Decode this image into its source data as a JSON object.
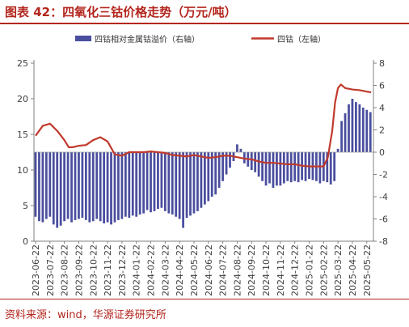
{
  "title": "图表 42：四氧化三钴价格走势（万元/吨）",
  "source": "资料来源：wind，华源证券研究所",
  "colors": {
    "accent": "#b3261e",
    "bar": "#4a4e9e",
    "line": "#c0392b"
  },
  "chart_data": {
    "type": "bar",
    "legend": [
      "四钴相对金属钴溢价（右轴）",
      "四钴（左轴）"
    ],
    "legend_placement": "top",
    "left_axis": {
      "ylim": [
        0,
        25
      ],
      "ticks": [
        "0",
        "5",
        "10",
        "15",
        "20",
        "25"
      ]
    },
    "right_axis": {
      "ylim": [
        -8,
        8
      ],
      "ticks": [
        "-8",
        "-6",
        "-4",
        "-2",
        "0",
        "2",
        "4",
        "6",
        "8"
      ]
    },
    "x_tick_labels": [
      "2023-06-22",
      "2023-07-22",
      "2023-08-22",
      "2023-09-22",
      "2023-10-22",
      "2023-11-22",
      "2023-12-22",
      "2024-01-22",
      "2024-02-22",
      "2024-03-22",
      "2024-04-22",
      "2024-05-22",
      "2024-06-22",
      "2024-07-22",
      "2024-08-22",
      "2024-09-22",
      "2024-10-22",
      "2024-11-22",
      "2024-12-22",
      "2025-01-22",
      "2025-02-22",
      "2025-03-22",
      "2025-04-22",
      "2025-05-22"
    ],
    "series": [
      {
        "name": "四钴相对金属钴溢价（右轴）",
        "type": "bar",
        "axis": "right",
        "x_month_index": [
          0.0,
          0.25,
          0.5,
          0.75,
          1.0,
          1.25,
          1.5,
          1.75,
          2.0,
          2.25,
          2.5,
          2.75,
          3.0,
          3.25,
          3.5,
          3.75,
          4.0,
          4.25,
          4.5,
          4.75,
          5.0,
          5.25,
          5.5,
          5.75,
          6.0,
          6.25,
          6.5,
          6.75,
          7.0,
          7.25,
          7.5,
          7.75,
          8.0,
          8.25,
          8.5,
          8.75,
          9.0,
          9.25,
          9.5,
          9.75,
          10.0,
          10.25,
          10.5,
          10.75,
          11.0,
          11.25,
          11.5,
          11.75,
          12.0,
          12.25,
          12.5,
          12.75,
          13.0,
          13.25,
          13.5,
          13.75,
          14.0,
          14.25,
          14.5,
          14.75,
          15.0,
          15.25,
          15.5,
          15.75,
          16.0,
          16.25,
          16.5,
          16.75,
          17.0,
          17.25,
          17.5,
          17.75,
          18.0,
          18.25,
          18.5,
          18.75,
          19.0,
          19.25,
          19.5,
          19.75,
          20.0,
          20.25,
          20.5,
          20.75,
          21.0,
          21.25,
          21.5,
          21.75,
          22.0,
          22.25,
          22.5,
          22.75,
          23.0,
          23.25
        ],
        "values": [
          -5.8,
          -6.2,
          -6.3,
          -6.0,
          -5.8,
          -6.5,
          -6.8,
          -6.6,
          -6.2,
          -6.0,
          -6.3,
          -6.1,
          -6.0,
          -5.9,
          -6.1,
          -6.3,
          -6.2,
          -6.0,
          -6.2,
          -6.4,
          -6.3,
          -6.5,
          -6.3,
          -6.1,
          -6.0,
          -5.8,
          -5.9,
          -5.7,
          -5.8,
          -5.6,
          -5.5,
          -5.2,
          -5.4,
          -5.3,
          -5.1,
          -5.0,
          -5.3,
          -5.5,
          -5.6,
          -5.8,
          -6.0,
          -6.8,
          -5.9,
          -5.7,
          -5.5,
          -5.3,
          -5.0,
          -4.7,
          -4.4,
          -4.0,
          -3.8,
          -3.2,
          -2.6,
          -2.0,
          -1.4,
          -0.8,
          0.7,
          0.3,
          -1.0,
          -1.3,
          -1.6,
          -1.8,
          -2.2,
          -2.6,
          -3.0,
          -2.8,
          -3.2,
          -3.0,
          -3.0,
          -2.8,
          -2.6,
          -2.7,
          -2.6,
          -2.7,
          -2.5,
          -2.6,
          -2.4,
          -2.5,
          -2.6,
          -2.8,
          -2.6,
          -2.7,
          -2.9,
          -2.6,
          0.3,
          2.8,
          3.5,
          4.3,
          4.8,
          4.5,
          4.3,
          4.0,
          3.8,
          3.6
        ]
      },
      {
        "name": "四钴（左轴）",
        "type": "line",
        "axis": "left",
        "x_month_index": [
          0.0,
          0.5,
          1.0,
          1.5,
          2.0,
          2.3,
          2.6,
          3.0,
          3.5,
          4.0,
          4.5,
          5.0,
          5.5,
          6.0,
          6.5,
          7.0,
          7.5,
          8.0,
          8.5,
          9.0,
          9.5,
          10.0,
          10.5,
          11.0,
          11.5,
          12.0,
          12.5,
          13.0,
          13.5,
          14.0,
          14.5,
          15.0,
          15.5,
          16.0,
          16.5,
          17.0,
          17.5,
          18.0,
          18.5,
          19.0,
          19.5,
          20.0,
          20.3,
          20.6,
          20.8,
          21.0,
          21.2,
          21.5,
          22.0,
          22.5,
          23.0,
          23.3
        ],
        "values": [
          14.8,
          16.2,
          16.5,
          15.5,
          14.2,
          13.2,
          13.2,
          13.4,
          13.5,
          14.2,
          14.6,
          14.0,
          12.2,
          12.0,
          12.5,
          12.5,
          12.5,
          12.6,
          12.5,
          12.4,
          12.1,
          12.0,
          11.9,
          12.1,
          11.9,
          11.7,
          11.8,
          12.0,
          12.0,
          11.8,
          11.6,
          11.5,
          11.2,
          11.0,
          11.0,
          10.9,
          10.8,
          10.8,
          10.6,
          10.5,
          10.5,
          10.5,
          11.8,
          15.5,
          19.5,
          21.5,
          22.0,
          21.5,
          21.3,
          21.2,
          21.0,
          20.9
        ]
      }
    ]
  }
}
